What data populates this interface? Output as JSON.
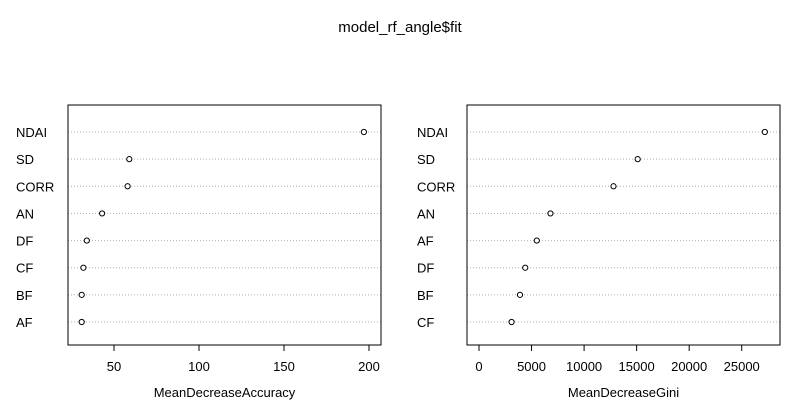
{
  "title": "model_rf_angle$fit",
  "chart_data": [
    {
      "type": "scatter",
      "variant": "dotchart",
      "xlabel": "MeanDecreaseAccuracy",
      "ylabel": "",
      "xlim": [
        30,
        200
      ],
      "xticks": [
        50,
        100,
        150,
        200
      ],
      "grid": "horizontal-dotted",
      "categories": [
        "NDAI",
        "SD",
        "CORR",
        "AN",
        "DF",
        "CF",
        "BF",
        "AF"
      ],
      "values": [
        197,
        59,
        58,
        43,
        34,
        32,
        31,
        31
      ]
    },
    {
      "type": "scatter",
      "variant": "dotchart",
      "xlabel": "MeanDecreaseGini",
      "ylabel": "",
      "xlim": [
        0,
        27500
      ],
      "xticks": [
        0,
        5000,
        10000,
        15000,
        20000,
        25000
      ],
      "grid": "horizontal-dotted",
      "categories": [
        "NDAI",
        "SD",
        "CORR",
        "AN",
        "AF",
        "DF",
        "BF",
        "CF"
      ],
      "values": [
        27200,
        15100,
        12800,
        6800,
        5500,
        4400,
        3900,
        3100
      ]
    }
  ]
}
